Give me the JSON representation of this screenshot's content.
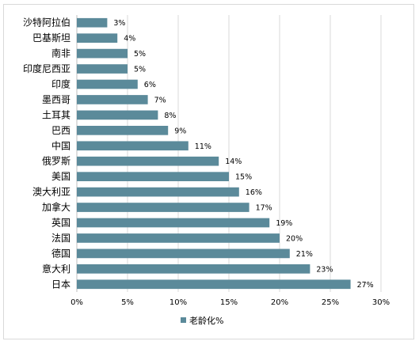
{
  "chart_data": {
    "type": "bar",
    "orientation": "horizontal",
    "categories": [
      "沙特阿拉伯",
      "巴基斯坦",
      "南非",
      "印度尼西亚",
      "印度",
      "墨西哥",
      "土耳其",
      "巴西",
      "中国",
      "俄罗斯",
      "美国",
      "澳大利亚",
      "加拿大",
      "英国",
      "法国",
      "德国",
      "意大利",
      "日本"
    ],
    "series": [
      {
        "name": "老龄化%",
        "values": [
          3,
          4,
          5,
          5,
          6,
          7,
          8,
          9,
          11,
          14,
          15,
          16,
          17,
          19,
          20,
          21,
          23,
          27
        ],
        "value_labels": [
          "3%",
          "4%",
          "5%",
          "5%",
          "6%",
          "7%",
          "8%",
          "9%",
          "11%",
          "14%",
          "15%",
          "16%",
          "17%",
          "19%",
          "20%",
          "21%",
          "23%",
          "27%"
        ],
        "color": "#5b8a9a"
      }
    ],
    "xlim": [
      0,
      30
    ],
    "x_ticks": [
      0,
      5,
      10,
      15,
      20,
      25,
      30
    ],
    "x_tick_labels": [
      "0%",
      "5%",
      "10%",
      "15%",
      "20%",
      "25%",
      "30%"
    ],
    "grid": "vertical",
    "legend_position": "bottom"
  }
}
